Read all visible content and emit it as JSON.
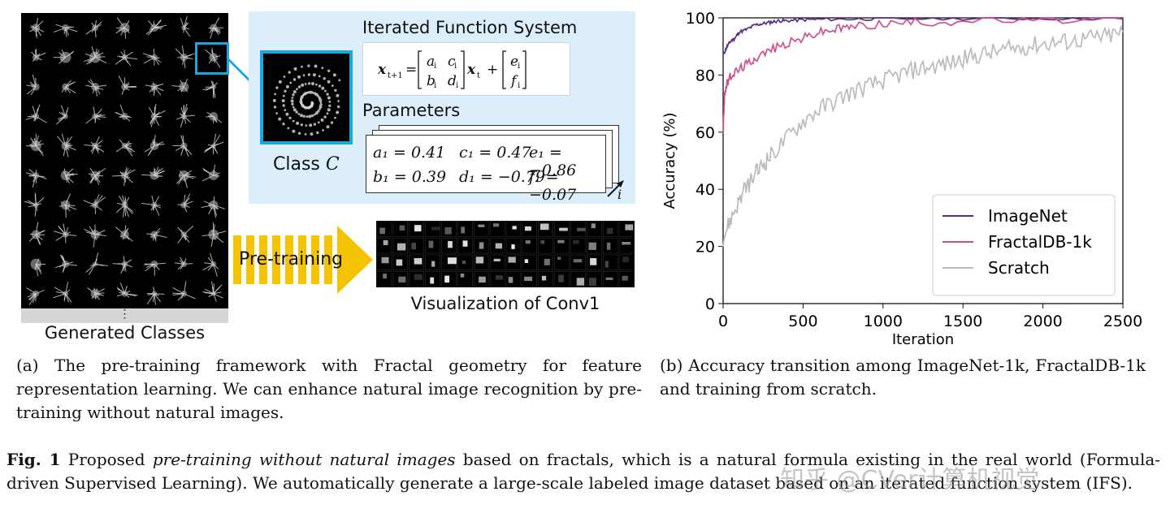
{
  "panel_a": {
    "generated_classes_label": "Generated Classes",
    "ifs_title": "Iterated Function System",
    "class_label": "Class",
    "class_symbol": "C",
    "parameters_label": "Parameters",
    "params_row1": [
      "a₁ = 0.41",
      "c₁ = 0.47",
      "e₁ = −0.86"
    ],
    "params_row2": [
      "b₁ = 0.39",
      "d₁ = −0.79",
      "f₁ = −0.07"
    ],
    "stack_index": "i",
    "pretraining_label": "Pre-training",
    "conv_label": "Visualization of Conv1",
    "ellipsis": "⋮",
    "caption": "(a) The pre-training framework with Fractal geometry for feature representation learning. We can enhance natural image recognition by pre-training without natural images."
  },
  "panel_b": {
    "caption": "(b) Accuracy transition among ImageNet-1k, FractalDB-1k and training from scratch."
  },
  "figure_caption": {
    "label": "Fig. 1",
    "italic": "pre-training without natural images",
    "text_before": "Proposed",
    "text_after": "based on fractals, which is a natural formula existing in the real world (Formula-driven Supervised Learning). We automatically generate a large-scale labeled image dataset based on an iterated function system (IFS)."
  },
  "watermark": "知乎 @CVer计算机视觉",
  "chart_data": {
    "type": "line",
    "xlabel": "Iteration",
    "ylabel": "Accuracy (%)",
    "xlim": [
      0,
      2500
    ],
    "ylim": [
      0,
      100
    ],
    "xticks": [
      0,
      500,
      1000,
      1500,
      2000,
      2500
    ],
    "yticks": [
      0,
      20,
      40,
      60,
      80,
      100
    ],
    "legend_position": "bottom-right",
    "grid": false,
    "series": [
      {
        "name": "ImageNet",
        "color": "#5b2d8e",
        "x": [
          0,
          25,
          50,
          75,
          100,
          150,
          200,
          250,
          300,
          350,
          400,
          500,
          600,
          800,
          1000,
          1500,
          2000,
          2500
        ],
        "y": [
          87,
          90,
          92,
          93,
          95,
          96,
          97.5,
          98,
          98.5,
          99,
          99,
          99.3,
          99.5,
          99.6,
          99.7,
          99.8,
          99.8,
          99.8
        ]
      },
      {
        "name": "FractalDB-1k",
        "color": "#d0508f",
        "x": [
          0,
          10,
          25,
          50,
          100,
          150,
          200,
          300,
          400,
          500,
          600,
          700,
          800,
          1000,
          1200,
          1500,
          2000,
          2500
        ],
        "y": [
          60,
          74,
          77,
          80,
          82,
          84,
          86,
          89,
          91,
          93,
          95,
          96,
          97,
          98,
          98.5,
          99,
          99.3,
          99.5
        ]
      },
      {
        "name": "Scratch",
        "color": "#bbbbbb",
        "x": [
          0,
          50,
          100,
          150,
          200,
          250,
          300,
          400,
          500,
          600,
          700,
          800,
          900,
          1000,
          1100,
          1200,
          1300,
          1400,
          1500,
          1600,
          1700,
          1800,
          1900,
          2000,
          2100,
          2200,
          2300,
          2400,
          2500
        ],
        "y": [
          23,
          30,
          36,
          41,
          45,
          49,
          52,
          58,
          64,
          68,
          71,
          74,
          76,
          78,
          80,
          82,
          83,
          84,
          85.5,
          87,
          88,
          89,
          90,
          91,
          91.5,
          92,
          93,
          93.5,
          95
        ]
      }
    ]
  }
}
